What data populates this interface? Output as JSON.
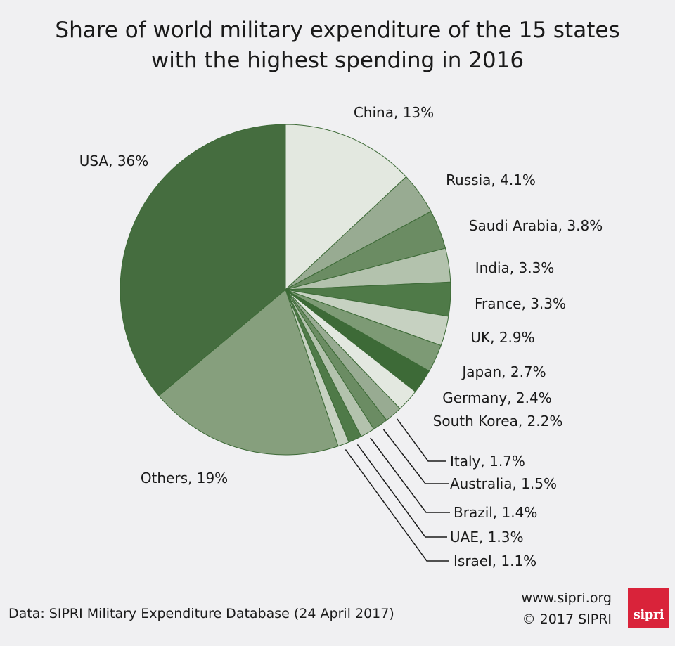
{
  "chart_data": {
    "type": "pie",
    "title": "Share of world military expenditure of the 15 states with the highest spending in 2016",
    "title_lines": [
      "Share of world military expenditure of the 15 states",
      "with the highest spending in 2016"
    ],
    "unit": "%",
    "slices": [
      {
        "label": "China, 13%",
        "name": "China",
        "value": 13,
        "color": "#e3e8e0"
      },
      {
        "label": "Russia, 4.1%",
        "name": "Russia",
        "value": 4.1,
        "color": "#98ab92"
      },
      {
        "label": "Saudi Arabia, 3.8%",
        "name": "Saudi Arabia",
        "value": 3.8,
        "color": "#6b8c63"
      },
      {
        "label": "India, 3.3%",
        "name": "India",
        "value": 3.3,
        "color": "#b3c2ad"
      },
      {
        "label": "France, 3.3%",
        "name": "France",
        "value": 3.3,
        "color": "#4f7a48"
      },
      {
        "label": "UK, 2.9%",
        "name": "UK",
        "value": 2.9,
        "color": "#c6d1c1"
      },
      {
        "label": "Japan, 2.7%",
        "name": "Japan",
        "value": 2.7,
        "color": "#7d9a75"
      },
      {
        "label": "Germany, 2.4%",
        "name": "Germany",
        "value": 2.4,
        "color": "#3d6a37"
      },
      {
        "label": "South Korea, 2.2%",
        "name": "South Korea",
        "value": 2.2,
        "color": "#e3e8e0"
      },
      {
        "label": "Italy, 1.7%",
        "name": "Italy",
        "value": 1.7,
        "color": "#98ab92"
      },
      {
        "label": "Australia, 1.5%",
        "name": "Australia",
        "value": 1.5,
        "color": "#6b8c63"
      },
      {
        "label": "Brazil, 1.4%",
        "name": "Brazil",
        "value": 1.4,
        "color": "#b3c2ad"
      },
      {
        "label": "UAE, 1.3%",
        "name": "UAE",
        "value": 1.3,
        "color": "#4f7a48"
      },
      {
        "label": "Israel, 1.1%",
        "name": "Israel",
        "value": 1.1,
        "color": "#c6d1c1"
      },
      {
        "label": "Others, 19%",
        "name": "Others",
        "value": 19,
        "color": "#869f7d"
      },
      {
        "label": "USA, 36%",
        "name": "USA",
        "value": 36,
        "color": "#456d3f"
      }
    ],
    "edge_color": "#3d6a37"
  },
  "footer": {
    "source": "Data: SIPRI Military Expenditure Database (24 April 2017)",
    "website": "www.sipri.org",
    "copyright": "© 2017 SIPRI",
    "logo_text": "sipri"
  }
}
